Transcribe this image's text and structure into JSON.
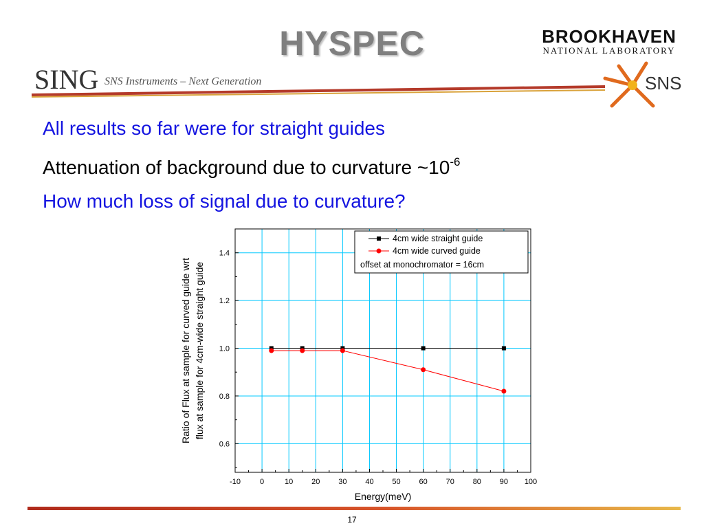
{
  "slide": {
    "title": "HYSPEC",
    "page_number": "17",
    "logos": {
      "bnl_main": "BROOKHAVEN",
      "bnl_sub": "NATIONAL LABORATORY",
      "sing_text": "SING",
      "sing_tagline": "SNS Instruments – Next Generation",
      "sns_text": "SNS"
    },
    "bullets": [
      {
        "text": "All results so far were for straight guides",
        "color": "#1414e0"
      },
      {
        "text": "Attenuation of background due to curvature ~10",
        "sup": "-6",
        "color": "#000000"
      },
      {
        "text": "How much loss of signal due to curvature?",
        "color": "#1414e0"
      }
    ]
  },
  "chart_data": {
    "type": "line",
    "xlabel": "Energy(meV)",
    "ylabel": "Ratio of Flux at sample for curved guide wrt flux at sample for 4cm-wide straight guide",
    "ylabel_lines": [
      "Ratio of Flux at sample for curved guide wrt",
      "flux at sample for 4cm-wide straight guide"
    ],
    "xlim": [
      -10,
      100
    ],
    "ylim": [
      0.48,
      1.5
    ],
    "x_ticks": [
      -10,
      0,
      10,
      20,
      30,
      40,
      50,
      60,
      70,
      80,
      90,
      100
    ],
    "y_ticks": [
      0.6,
      0.8,
      1.0,
      1.2,
      1.4
    ],
    "y_tick_labels": [
      "0.6",
      "0.8",
      "1.0",
      "1.2",
      "1.4"
    ],
    "grid": true,
    "grid_color": "#00c8ff",
    "legend_position": "top-right",
    "legend_note": "offset at monochromator = 16cm",
    "series": [
      {
        "name": "4cm wide straight guide",
        "color": "#000000",
        "marker": "square",
        "x": [
          3.5,
          15,
          30,
          60,
          90
        ],
        "y": [
          1.0,
          1.0,
          1.0,
          1.0,
          1.0
        ]
      },
      {
        "name": "4cm wide curved guide",
        "color": "#ff0000",
        "marker": "circle",
        "x": [
          3.5,
          15,
          30,
          60,
          90
        ],
        "y": [
          0.99,
          0.99,
          0.99,
          0.91,
          0.82
        ]
      }
    ]
  }
}
